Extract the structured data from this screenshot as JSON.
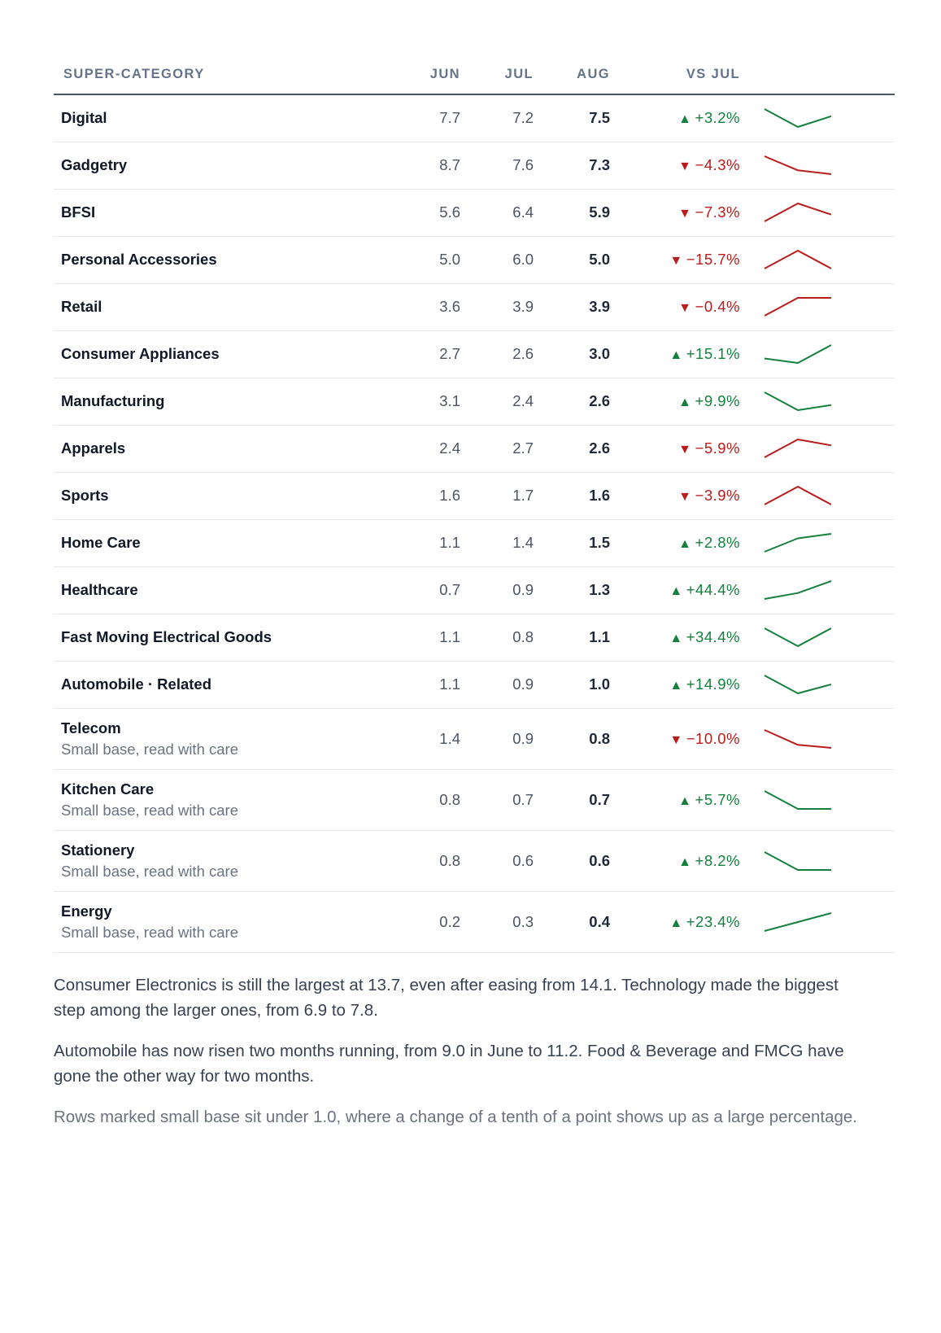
{
  "table": {
    "headers": {
      "name": "SUPER-CATEGORY",
      "jun": "JUN",
      "jul": "JUL",
      "aug": "AUG",
      "vs": "VS JUL"
    },
    "colors": {
      "up": "#15803d",
      "down": "#b91c1c"
    },
    "rows": [
      {
        "name": "Digital",
        "note": "",
        "jun": "7.7",
        "jul": "7.2",
        "aug": "7.5",
        "vs": "+3.2%",
        "dir": "up",
        "values": [
          7.7,
          7.2,
          7.5
        ]
      },
      {
        "name": "Gadgetry",
        "note": "",
        "jun": "8.7",
        "jul": "7.6",
        "aug": "7.3",
        "vs": "−4.3%",
        "dir": "down",
        "values": [
          8.7,
          7.6,
          7.3
        ]
      },
      {
        "name": "BFSI",
        "note": "",
        "jun": "5.6",
        "jul": "6.4",
        "aug": "5.9",
        "vs": "−7.3%",
        "dir": "down",
        "values": [
          5.6,
          6.4,
          5.9
        ]
      },
      {
        "name": "Personal Accessories",
        "note": "",
        "jun": "5.0",
        "jul": "6.0",
        "aug": "5.0",
        "vs": "−15.7%",
        "dir": "down",
        "values": [
          5.0,
          6.0,
          5.0
        ]
      },
      {
        "name": "Retail",
        "note": "",
        "jun": "3.6",
        "jul": "3.9",
        "aug": "3.9",
        "vs": "−0.4%",
        "dir": "down",
        "values": [
          3.6,
          3.9,
          3.9
        ]
      },
      {
        "name": "Consumer Appliances",
        "note": "",
        "jun": "2.7",
        "jul": "2.6",
        "aug": "3.0",
        "vs": "+15.1%",
        "dir": "up",
        "values": [
          2.7,
          2.6,
          3.0
        ]
      },
      {
        "name": "Manufacturing",
        "note": "",
        "jun": "3.1",
        "jul": "2.4",
        "aug": "2.6",
        "vs": "+9.9%",
        "dir": "up",
        "values": [
          3.1,
          2.4,
          2.6
        ]
      },
      {
        "name": "Apparels",
        "note": "",
        "jun": "2.4",
        "jul": "2.7",
        "aug": "2.6",
        "vs": "−5.9%",
        "dir": "down",
        "values": [
          2.4,
          2.7,
          2.6
        ]
      },
      {
        "name": "Sports",
        "note": "",
        "jun": "1.6",
        "jul": "1.7",
        "aug": "1.6",
        "vs": "−3.9%",
        "dir": "down",
        "values": [
          1.6,
          1.7,
          1.6
        ]
      },
      {
        "name": "Home Care",
        "note": "",
        "jun": "1.1",
        "jul": "1.4",
        "aug": "1.5",
        "vs": "+2.8%",
        "dir": "up",
        "values": [
          1.1,
          1.4,
          1.5
        ]
      },
      {
        "name": "Healthcare",
        "note": "",
        "jun": "0.7",
        "jul": "0.9",
        "aug": "1.3",
        "vs": "+44.4%",
        "dir": "up",
        "values": [
          0.7,
          0.9,
          1.3
        ]
      },
      {
        "name": "Fast Moving Electrical Goods",
        "note": "",
        "jun": "1.1",
        "jul": "0.8",
        "aug": "1.1",
        "vs": "+34.4%",
        "dir": "up",
        "values": [
          1.1,
          0.8,
          1.1
        ]
      },
      {
        "name": "Automobile · Related",
        "note": "",
        "jun": "1.1",
        "jul": "0.9",
        "aug": "1.0",
        "vs": "+14.9%",
        "dir": "up",
        "values": [
          1.1,
          0.9,
          1.0
        ]
      },
      {
        "name": "Telecom",
        "note": "Small base, read with care",
        "jun": "1.4",
        "jul": "0.9",
        "aug": "0.8",
        "vs": "−10.0%",
        "dir": "down",
        "values": [
          1.4,
          0.9,
          0.8
        ]
      },
      {
        "name": "Kitchen Care",
        "note": "Small base, read with care",
        "jun": "0.8",
        "jul": "0.7",
        "aug": "0.7",
        "vs": "+5.7%",
        "dir": "up",
        "values": [
          0.8,
          0.7,
          0.7
        ]
      },
      {
        "name": "Stationery",
        "note": "Small base, read with care",
        "jun": "0.8",
        "jul": "0.6",
        "aug": "0.6",
        "vs": "+8.2%",
        "dir": "up",
        "values": [
          0.8,
          0.6,
          0.6
        ]
      },
      {
        "name": "Energy",
        "note": "Small base, read with care",
        "jun": "0.2",
        "jul": "0.3",
        "aug": "0.4",
        "vs": "+23.4%",
        "dir": "up",
        "values": [
          0.2,
          0.3,
          0.4
        ]
      }
    ]
  },
  "prose": {
    "p1": "Consumer Electronics is still the largest at 13.7, even after easing from 14.1. Technology made the biggest step among the larger ones, from 6.9 to 7.8.",
    "p2": "Automobile has now risen two months running, from 9.0 in June to 11.2. Food & Beverage and FMCG have gone the other way for two months.",
    "p3": "Rows marked small base sit under 1.0, where a change of a tenth of a point shows up as a large percentage."
  }
}
